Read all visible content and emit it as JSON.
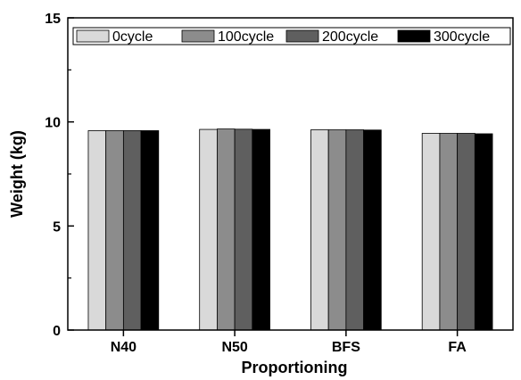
{
  "chart_data": {
    "type": "bar",
    "title": "",
    "xlabel": "Proportioning",
    "ylabel": "Weight (kg)",
    "categories": [
      "N40",
      "N50",
      "BFS",
      "FA"
    ],
    "ylim": [
      0,
      15
    ],
    "yticks": [
      "0",
      "5",
      "10",
      "15"
    ],
    "grid": false,
    "legend_position": "top",
    "series": [
      {
        "name": "0cycle",
        "color": "#d9d9d9",
        "values": [
          9.58,
          9.64,
          9.62,
          9.45
        ]
      },
      {
        "name": "100cycle",
        "color": "#8c8c8c",
        "values": [
          9.58,
          9.66,
          9.62,
          9.45
        ]
      },
      {
        "name": "200cycle",
        "color": "#5f5f5f",
        "values": [
          9.58,
          9.65,
          9.62,
          9.45
        ]
      },
      {
        "name": "300cycle",
        "color": "#000000",
        "values": [
          9.58,
          9.64,
          9.61,
          9.43
        ]
      }
    ]
  }
}
